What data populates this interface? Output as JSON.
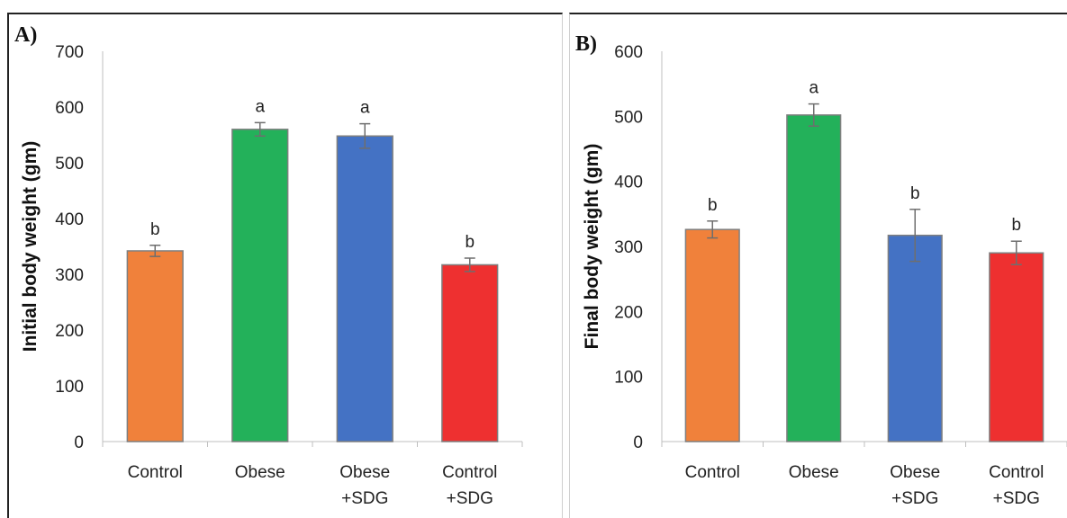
{
  "chart_data": [
    {
      "type": "bar",
      "panel_label": "A)",
      "ylabel": "Initial body weight (gm)",
      "xlabel": "",
      "ylim": [
        0,
        700
      ],
      "yticks": [
        0,
        100,
        200,
        300,
        400,
        500,
        600,
        700
      ],
      "categories": [
        [
          "Control"
        ],
        [
          "Obese"
        ],
        [
          "Obese",
          "+SDG"
        ],
        [
          "Control",
          "+SDG"
        ]
      ],
      "values": [
        342,
        560,
        548,
        317
      ],
      "errors": [
        10,
        12,
        22,
        12
      ],
      "significance": [
        "b",
        "a",
        "a",
        "b"
      ],
      "colors": [
        "#F0813B",
        "#23B15A",
        "#4472C4",
        "#EE3030"
      ],
      "grid": false,
      "legend": "none"
    },
    {
      "type": "bar",
      "panel_label": "B)",
      "ylabel": "Final body weight (gm)",
      "xlabel": "",
      "ylim": [
        0,
        600
      ],
      "yticks": [
        0,
        100,
        200,
        300,
        400,
        500,
        600
      ],
      "categories": [
        [
          "Control"
        ],
        [
          "Obese"
        ],
        [
          "Obese",
          "+SDG"
        ],
        [
          "Control",
          "+SDG"
        ]
      ],
      "values": [
        326,
        502,
        317,
        290
      ],
      "errors": [
        13,
        17,
        40,
        18
      ],
      "significance": [
        "b",
        "a",
        "b",
        "b"
      ],
      "colors": [
        "#F0813B",
        "#23B15A",
        "#4472C4",
        "#EE3030"
      ],
      "grid": false,
      "legend": "none"
    }
  ]
}
